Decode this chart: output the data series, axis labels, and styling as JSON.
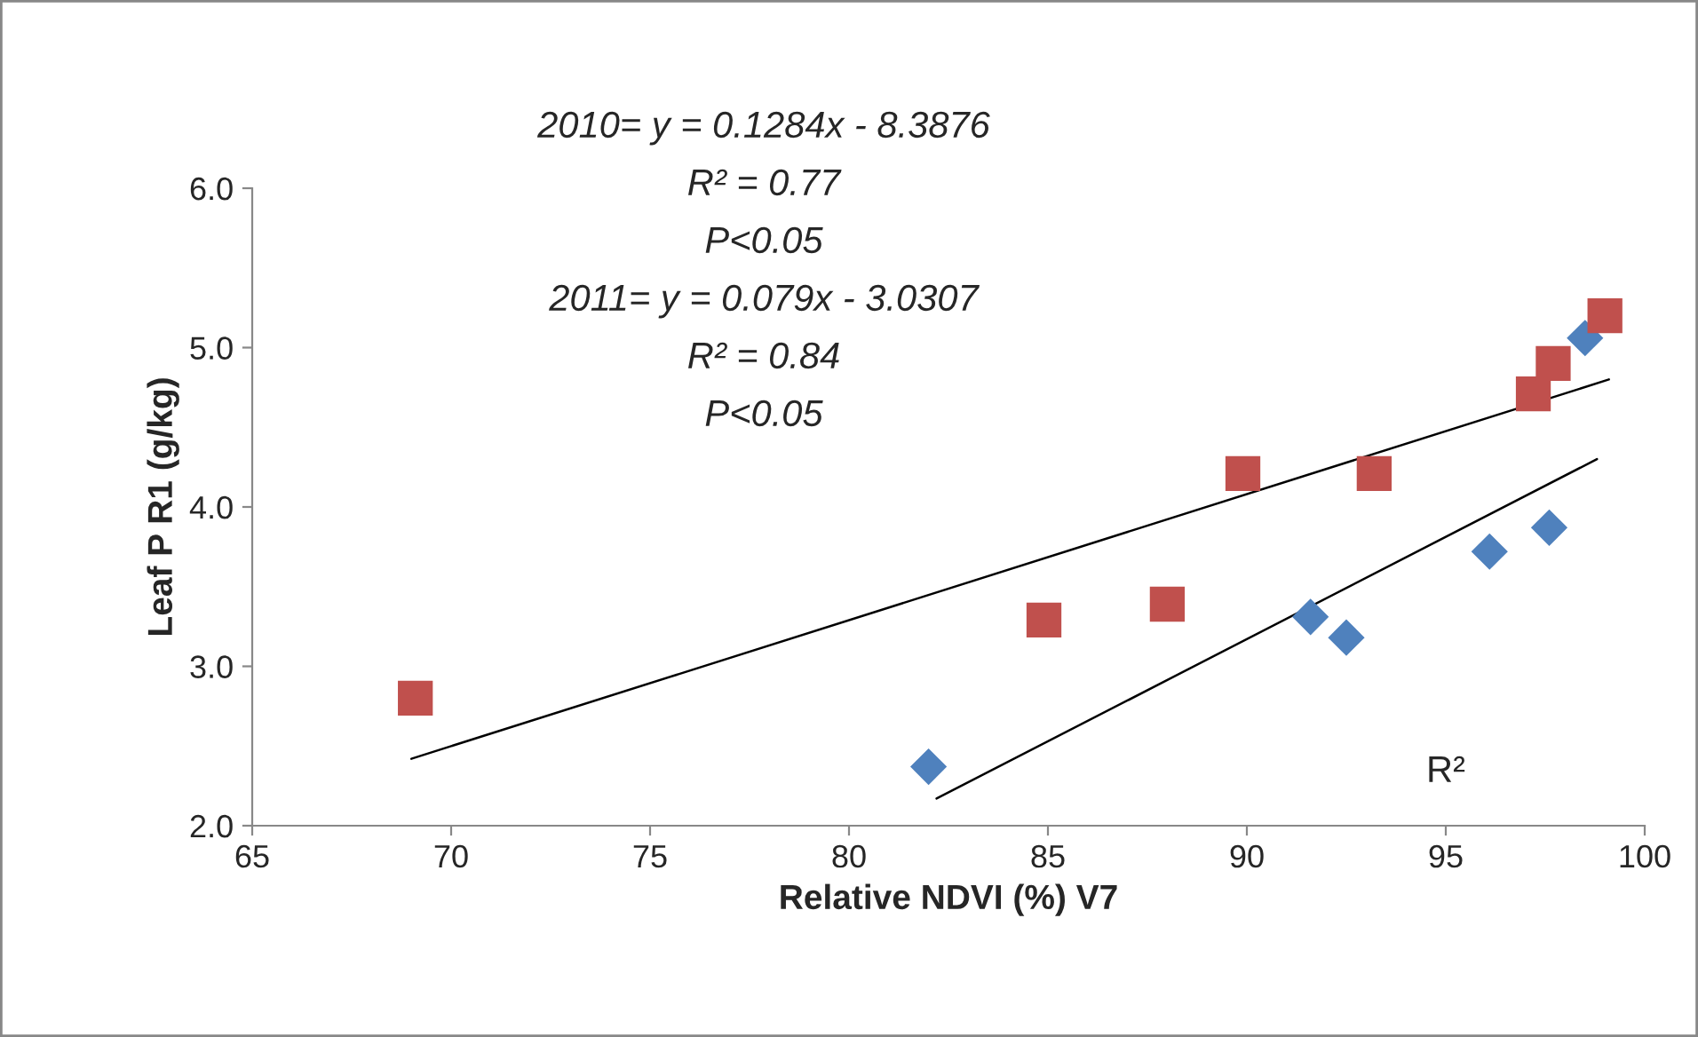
{
  "chart_data": {
    "type": "scatter",
    "xlabel": "Relative NDVI (%) V7",
    "ylabel": "Leaf P R1 (g/kg)",
    "series": [
      {
        "type": "scatter",
        "color": "#4f81bd",
        "marker": "diamond",
        "x": [
          82.0,
          91.6,
          92.5,
          96.1,
          97.6,
          98.5
        ],
        "values": [
          2.37,
          3.31,
          3.18,
          3.72,
          3.87,
          5.06
        ]
      },
      {
        "type": "scatter",
        "color": "#c0504d",
        "marker": "square",
        "x": [
          69.1,
          84.9,
          88.0,
          89.9,
          93.2,
          97.2,
          97.7,
          99.0
        ],
        "values": [
          2.8,
          3.29,
          3.39,
          4.21,
          4.21,
          4.71,
          4.9,
          5.2
        ]
      },
      {
        "type": "line",
        "color": "#000000",
        "marker": "none",
        "x": [
          82.2,
          98.8
        ],
        "values": [
          2.17,
          4.3
        ]
      },
      {
        "type": "line",
        "color": "#000000",
        "marker": "none",
        "x": [
          69.0,
          99.1
        ],
        "values": [
          2.42,
          4.8
        ]
      }
    ],
    "annotations": [
      "2010= y = 0.1284x - 8.3876",
      "R² = 0.77",
      "P<0.05",
      "2011= y = 0.079x - 3.0307",
      "R² = 0.84",
      "P<0.05",
      "R²"
    ],
    "xlim": [
      65,
      100
    ],
    "xticks": [
      65,
      70,
      75,
      80,
      85,
      90,
      95,
      100
    ],
    "ylim": [
      2.0,
      6.0
    ],
    "yticks": [
      {
        "value": 2.0,
        "label": "2.0"
      },
      {
        "value": 3.0,
        "label": "3.0"
      },
      {
        "value": 4.0,
        "label": "4.0"
      },
      {
        "value": 5.0,
        "label": "5.0"
      },
      {
        "value": 6.0,
        "label": "6.0"
      }
    ],
    "grid": false,
    "legend": false
  }
}
